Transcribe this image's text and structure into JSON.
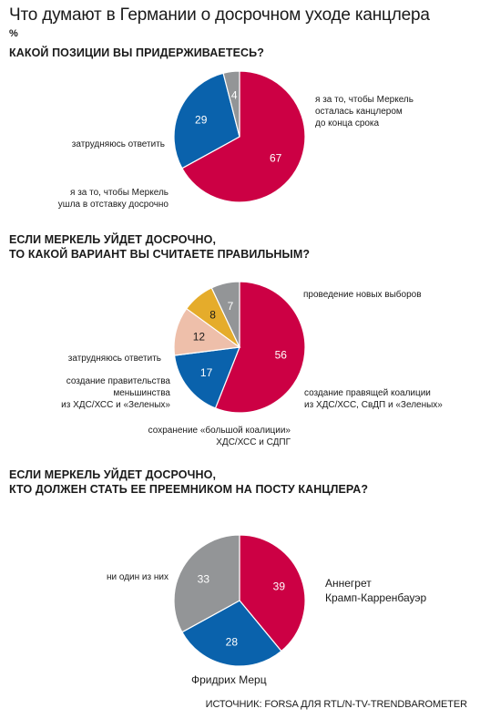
{
  "title": "Что думают в Германии о досрочном уходе канцлера",
  "unit": "%",
  "source": "ИСТОЧНИК: FORSA ДЛЯ RTL/N-TV-TRENDBAROMETER",
  "colors": {
    "red": "#cc0044",
    "blue": "#0a62ac",
    "gray": "#939597",
    "yellow": "#e5ac2b",
    "pink": "#eebfaa"
  },
  "chart_data": [
    {
      "type": "pie",
      "title": "КАКОЙ ПОЗИЦИИ ВЫ ПРИДЕРЖИВАЕТЕСЬ?",
      "slices": [
        {
          "label": "я за то, чтобы Меркель\nосталась канцлером\nдо конца срока",
          "value": 67,
          "color": "#cc0044"
        },
        {
          "label": "я за то, чтобы Меркель\nушла в отставку досрочно",
          "value": 29,
          "color": "#0a62ac"
        },
        {
          "label": "затрудняюсь ответить",
          "value": 4,
          "color": "#939597"
        }
      ]
    },
    {
      "type": "pie",
      "title": "ЕСЛИ МЕРКЕЛЬ УЙДЕТ ДОСРОЧНО,\nТО КАКОЙ ВАРИАНТ ВЫ СЧИТАЕТЕ ПРАВИЛЬНЫМ?",
      "slices": [
        {
          "label": "проведение новых выборов",
          "value": 56,
          "color": "#cc0044"
        },
        {
          "label": "создание правящей коалиции\nиз ХДС/ХСС, СвДП и «Зеленых»",
          "value": 17,
          "color": "#0a62ac"
        },
        {
          "label": "сохранение «большой коалиции»\nХДС/ХСС и СДПГ",
          "value": 12,
          "color": "#eebfaa"
        },
        {
          "label": "создание правительства\nменьшинства\nиз ХДС/ХСС и «Зеленых»",
          "value": 8,
          "color": "#e5ac2b"
        },
        {
          "label": "затрудняюсь ответить",
          "value": 7,
          "color": "#939597"
        }
      ]
    },
    {
      "type": "pie",
      "title": "ЕСЛИ МЕРКЕЛЬ УЙДЕТ ДОСРОЧНО,\nКТО ДОЛЖЕН СТАТЬ ЕЕ ПРЕЕМНИКОМ НА ПОСТУ КАНЦЛЕРА?",
      "slices": [
        {
          "label": "Аннегрет\nКрамп-Карренбауэр",
          "value": 39,
          "color": "#cc0044"
        },
        {
          "label": "Фридрих Мерц",
          "value": 28,
          "color": "#0a62ac"
        },
        {
          "label": "ни один из них",
          "value": 33,
          "color": "#939597"
        }
      ]
    }
  ]
}
